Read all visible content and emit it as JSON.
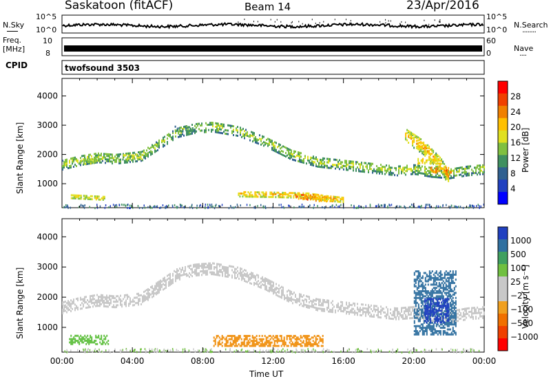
{
  "header": {
    "station": "Saskatoon (fitACF)",
    "beam": "Beam 14",
    "date": "23/Apr/2016"
  },
  "nsky_panel": {
    "left_label": "N.Sky",
    "left_ticks": [
      "10^5",
      "10^0"
    ],
    "right_label": "N.Search",
    "right_ticks": [
      "10^5",
      "10^0"
    ],
    "right_line": "········"
  },
  "freq_panel": {
    "left_label_1": "Freq.",
    "left_label_2": "[MHz]",
    "left_ticks": [
      "10",
      "8"
    ],
    "right_label": "Nave",
    "right_ticks": [
      "60",
      "0"
    ],
    "right_line": "····"
  },
  "cpid_panel": {
    "label": "CPID",
    "program": "twofsound 3503"
  },
  "colors": {
    "frame": "#000000",
    "grey_scatter": "#c8c8c8"
  },
  "chart_data": [
    {
      "type": "heatmap",
      "name": "power",
      "ylabel": "Slant Range [km]",
      "xlabel": "",
      "x_ticks": [
        "00:00",
        "04:00",
        "08:00",
        "12:00",
        "16:00",
        "20:00",
        "00:00"
      ],
      "xlim_hours": [
        0,
        24
      ],
      "ylim_km": [
        180,
        4600
      ],
      "y_ticks": [
        1000,
        2000,
        3000,
        4000
      ],
      "colorbar_label": "Power [dB]",
      "colorbar_ticks": [
        "28",
        "24",
        "20",
        "16",
        "12",
        "8",
        "4"
      ],
      "colorbar_colors": [
        "#ff0000",
        "#f04000",
        "#f08000",
        "#ffc000",
        "#e0e020",
        "#80c040",
        "#409060",
        "#306090",
        "#2040c0",
        "#0000ff"
      ],
      "bands": [
        {
          "x": [
            0,
            1,
            2,
            3,
            4.5,
            5.5,
            6.5,
            7.5,
            8.5,
            10,
            11.5,
            13,
            14.5,
            16,
            17.5,
            19,
            20,
            21,
            22,
            23,
            24
          ],
          "y": [
            1700,
            1850,
            1950,
            1900,
            2000,
            2400,
            2800,
            2950,
            3000,
            2850,
            2500,
            2050,
            1800,
            1700,
            1600,
            1500,
            1550,
            1450,
            1400,
            1500,
            1550
          ],
          "half_width": 180,
          "level": 10
        },
        {
          "x": [
            10,
            12,
            14,
            15,
            16
          ],
          "y": [
            700,
            680,
            650,
            560,
            500
          ],
          "half_width": 100,
          "level": 14
        },
        {
          "x": [
            0.5,
            1.5,
            2.5
          ],
          "y": [
            600,
            570,
            540
          ],
          "half_width": 60,
          "level": 12
        },
        {
          "x": [
            19.5,
            20.5,
            21.5,
            22
          ],
          "y": [
            2700,
            2300,
            1700,
            1200
          ],
          "half_width": 250,
          "level": 16
        }
      ],
      "hotspots": [
        {
          "x": 1.5,
          "y": 1800,
          "level": 18
        },
        {
          "x": 4.0,
          "y": 1950,
          "level": 18
        },
        {
          "x": 7.0,
          "y": 2900,
          "level": 14
        },
        {
          "x": 13.8,
          "y": 580,
          "level": 26
        },
        {
          "x": 14.8,
          "y": 520,
          "level": 24
        },
        {
          "x": 21.5,
          "y": 1500,
          "level": 26
        },
        {
          "x": 20.8,
          "y": 1800,
          "level": 22
        }
      ]
    },
    {
      "type": "heatmap",
      "name": "velocity",
      "ylabel": "Slant Range [km]",
      "xlabel": "Time UT",
      "x_ticks": [
        "00:00",
        "04:00",
        "08:00",
        "12:00",
        "16:00",
        "20:00",
        "00:00"
      ],
      "xlim_hours": [
        0,
        24
      ],
      "ylim_km": [
        180,
        4600
      ],
      "y_ticks": [
        1000,
        2000,
        3000,
        4000
      ],
      "colorbar_label": "Velocity [m s⁻¹]",
      "colorbar_ticks": [
        "1000",
        "500",
        "100",
        "25",
        "−25",
        "−100",
        "−500",
        "−1000"
      ],
      "colorbar_colors": [
        "#2040c0",
        "#3070a0",
        "#40a060",
        "#70c040",
        "#c8c8c8",
        "#c8c8c8",
        "#f0a020",
        "#f07000",
        "#f04000",
        "#ff0000"
      ],
      "grey_band": {
        "x": [
          0,
          1,
          2,
          3,
          4.5,
          5.5,
          6.5,
          7.5,
          8.5,
          10,
          11.5,
          13,
          14.5,
          16,
          17.5,
          19,
          20,
          21,
          22,
          23,
          24
        ],
        "y": [
          1700,
          1850,
          1950,
          1900,
          2000,
          2400,
          2800,
          2950,
          3000,
          2850,
          2500,
          2050,
          1800,
          1700,
          1600,
          1500,
          1550,
          1450,
          1400,
          1500,
          1550
        ],
        "half_width": 200
      },
      "patches": [
        {
          "x0": 8.6,
          "x1": 14.8,
          "y0": 420,
          "y1": 800,
          "color": "#f09010"
        },
        {
          "x0": 0.4,
          "x1": 2.6,
          "y0": 480,
          "y1": 780,
          "color": "#60c040"
        },
        {
          "x0": 20.0,
          "x1": 22.4,
          "y0": 800,
          "y1": 2900,
          "color": "#3070a0"
        },
        {
          "x0": 20.6,
          "x1": 22.0,
          "y0": 1200,
          "y1": 2000,
          "color": "#2040c0"
        }
      ]
    }
  ]
}
